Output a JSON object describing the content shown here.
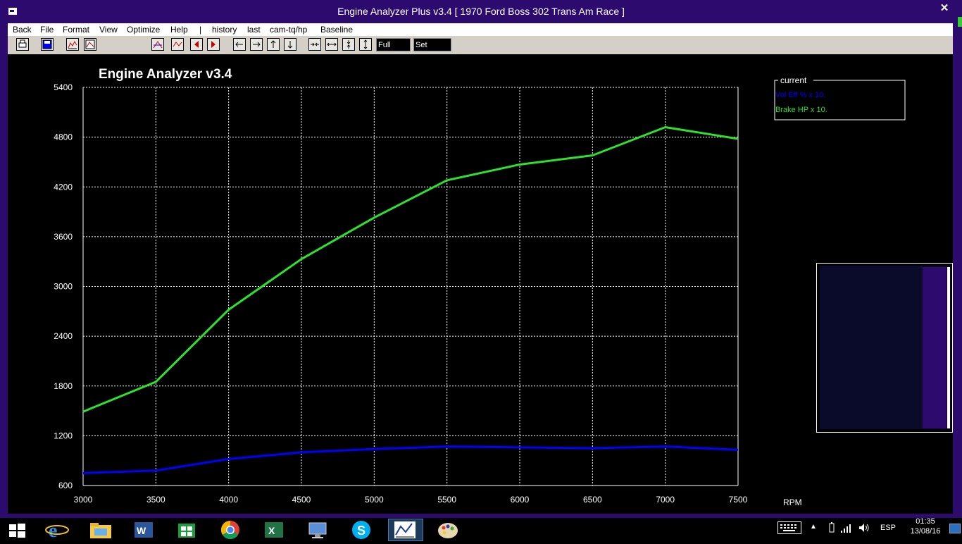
{
  "window": {
    "title": "Engine Analyzer Plus v3.4 [ 1970 Ford Boss 302 Trans Am Race ]",
    "close_glyph": "✕"
  },
  "menu": [
    "Back",
    "File",
    "Format",
    "View",
    "Optimize",
    "Help",
    "|",
    "history",
    "last",
    "cam-tq/hp",
    "Baseline"
  ],
  "toolbar": {
    "full_view_label": "Full View",
    "set_scales_label": "Set Scales",
    "icons": [
      "print-icon",
      "save-icon",
      "graph-icon",
      "graph-alt-icon",
      "compare-icon",
      "compare-alt-icon",
      "left-arrow-icon",
      "right-arrow-icon",
      "left-icon",
      "right-icon",
      "up-icon",
      "down-icon",
      "shrink-horizontal-icon",
      "expand-horizontal-icon",
      "shrink-vertical-icon",
      "expand-vertical-icon"
    ]
  },
  "legend": {
    "title": "current",
    "items": [
      {
        "label": "Vol Eff % x 10.",
        "color": "#0000ff"
      },
      {
        "label": "Brake HP x 10.",
        "color": "#2de12d"
      }
    ]
  },
  "chart_data": {
    "type": "line",
    "title": "Engine Analyzer v3.4",
    "xlabel": "RPM",
    "ylabel": "",
    "x": [
      3000,
      3500,
      4000,
      4500,
      5000,
      5500,
      6000,
      6500,
      7000,
      7500
    ],
    "xlim": [
      3000,
      7500
    ],
    "ylim": [
      600,
      5400
    ],
    "xticks": [
      "3000",
      "3500",
      "4000",
      "4500",
      "5000",
      "5500",
      "6000",
      "6500",
      "7000",
      "7500"
    ],
    "yticks": [
      "5400",
      "4800",
      "4200",
      "3600",
      "3000",
      "2400",
      "1800",
      "1200",
      "600"
    ],
    "grid": true,
    "legend_position": "top-right",
    "series": [
      {
        "name": "Vol Eff % x 10.",
        "color": "#0000ff",
        "values": [
          750,
          780,
          920,
          1000,
          1040,
          1070,
          1060,
          1050,
          1070,
          1030
        ]
      },
      {
        "name": "Brake HP x 10.",
        "color": "#2de12d",
        "values": [
          1490,
          1850,
          2720,
          3330,
          3830,
          4280,
          4470,
          4580,
          4920,
          4780
        ]
      }
    ]
  },
  "taskbar": {
    "lang": "ESP",
    "time": "01:35",
    "date": "13/08/16",
    "apps": [
      "windows-start-icon",
      "internet-explorer-icon",
      "file-explorer-icon",
      "word-icon",
      "store-icon",
      "chrome-icon",
      "excel-icon",
      "remote-desktop-icon",
      "skype-icon",
      "engine-analyzer-icon",
      "paint-icon"
    ]
  }
}
